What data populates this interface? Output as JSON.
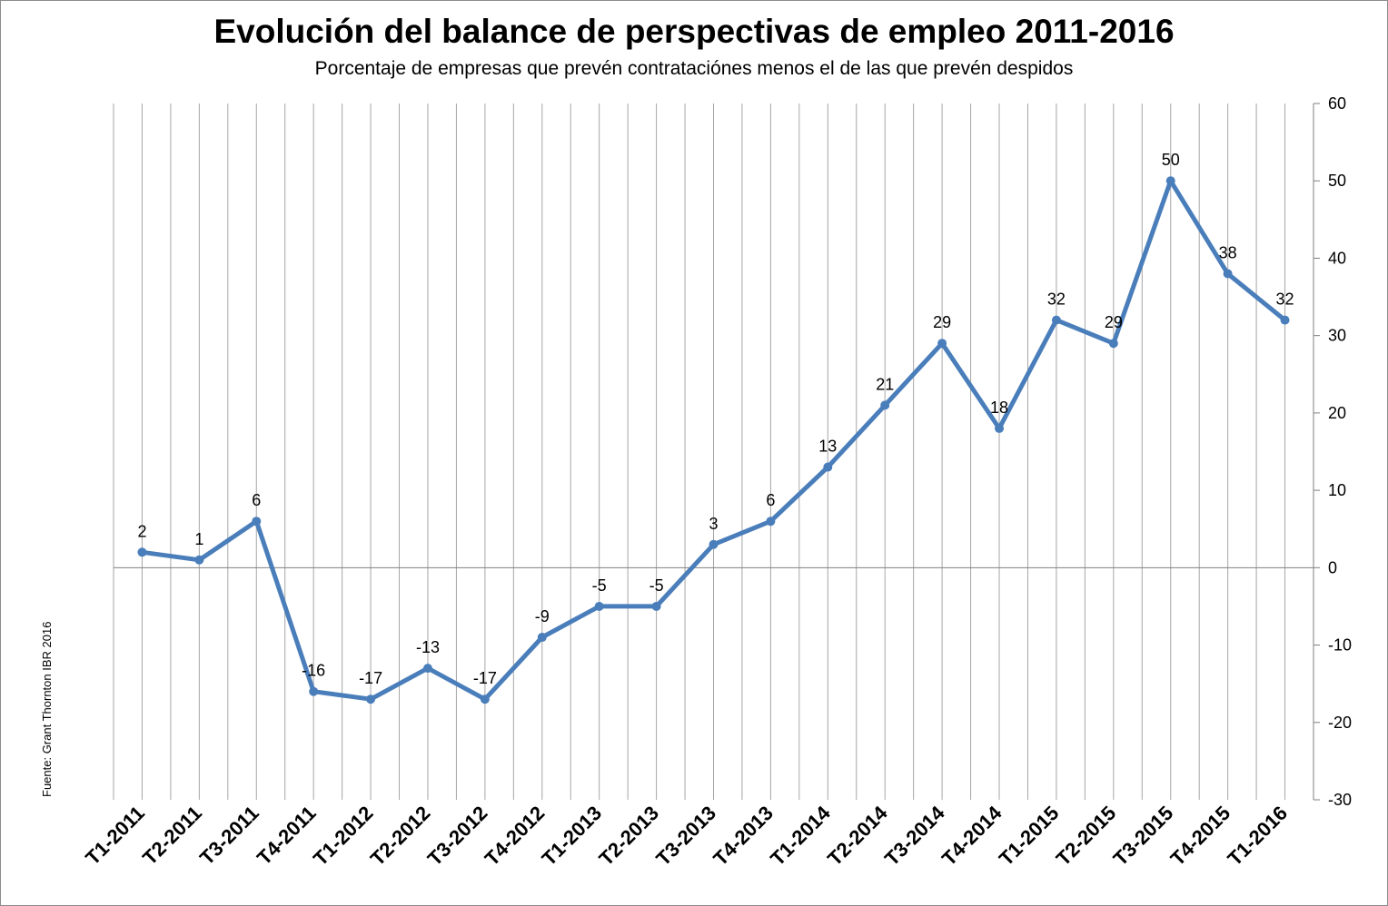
{
  "chart_data": {
    "type": "line",
    "title": "Evolución del balance de perspectivas de empleo 2011-2016",
    "subtitle": "Porcentaje de empresas que prevén contrataciónes menos el de las que prevén despidos",
    "source": "Fuente: Grant Thornton IBR 2016",
    "categories": [
      "T1-2011",
      "T2-2011",
      "T3-2011",
      "T4-2011",
      "T1-2012",
      "T2-2012",
      "T3-2012",
      "T4-2012",
      "T1-2013",
      "T2-2013",
      "T3-2013",
      "T4-2013",
      "T1-2014",
      "T2-2014",
      "T3-2014",
      "T4-2014",
      "T1-2015",
      "T2-2015",
      "T3-2015",
      "T4-2015",
      "T1-2016"
    ],
    "values": [
      2,
      1,
      6,
      -16,
      -17,
      -13,
      -17,
      -9,
      -5,
      -5,
      3,
      6,
      13,
      21,
      29,
      18,
      32,
      29,
      50,
      38,
      32
    ],
    "ylim": [
      -30,
      60
    ],
    "yticks": [
      60,
      50,
      40,
      30,
      20,
      10,
      0,
      -10,
      -20,
      -30
    ],
    "y_axis_position": "right",
    "grid": "vertical",
    "legend": "none",
    "line_color": "#4a7ebb"
  }
}
